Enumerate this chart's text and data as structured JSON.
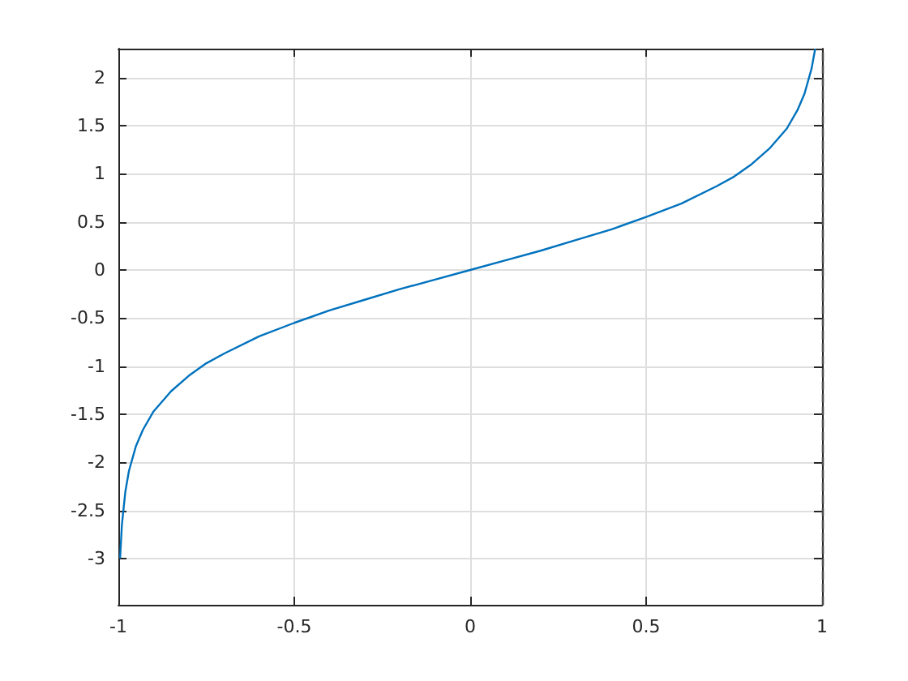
{
  "chart_data": {
    "type": "line",
    "x": [
      -0.995,
      -0.99,
      -0.98,
      -0.97,
      -0.95,
      -0.93,
      -0.9,
      -0.85,
      -0.8,
      -0.75,
      -0.7,
      -0.6,
      -0.5,
      -0.4,
      -0.3,
      -0.2,
      -0.1,
      0,
      0.1,
      0.2,
      0.3,
      0.4,
      0.5,
      0.6,
      0.7,
      0.75,
      0.8,
      0.85,
      0.9,
      0.93,
      0.95,
      0.97,
      0.98
    ],
    "series": [
      {
        "color": "#0072bd",
        "values": [
          -2.99,
          -2.65,
          -2.3,
          -2.09,
          -1.83,
          -1.66,
          -1.47,
          -1.26,
          -1.1,
          -0.97,
          -0.87,
          -0.69,
          -0.55,
          -0.42,
          -0.31,
          -0.2,
          -0.1,
          0,
          0.1,
          0.2,
          0.31,
          0.42,
          0.55,
          0.69,
          0.87,
          0.97,
          1.1,
          1.26,
          1.47,
          1.66,
          1.83,
          2.09,
          2.29
        ]
      }
    ],
    "xlim": [
      -1,
      1
    ],
    "xticks": [
      -1,
      -0.5,
      0,
      0.5,
      1
    ],
    "ylim": [
      -3.48,
      2.3
    ],
    "yticks": [
      -3,
      -2.5,
      -2,
      -1.5,
      -1,
      -0.5,
      0,
      0.5,
      1,
      1.5,
      2
    ],
    "grid": true,
    "line_style": "solid",
    "ref_lines": [
      {
        "axis": "x",
        "value": 1,
        "color": "#4d4d4d",
        "line_style": "dashed"
      }
    ]
  }
}
